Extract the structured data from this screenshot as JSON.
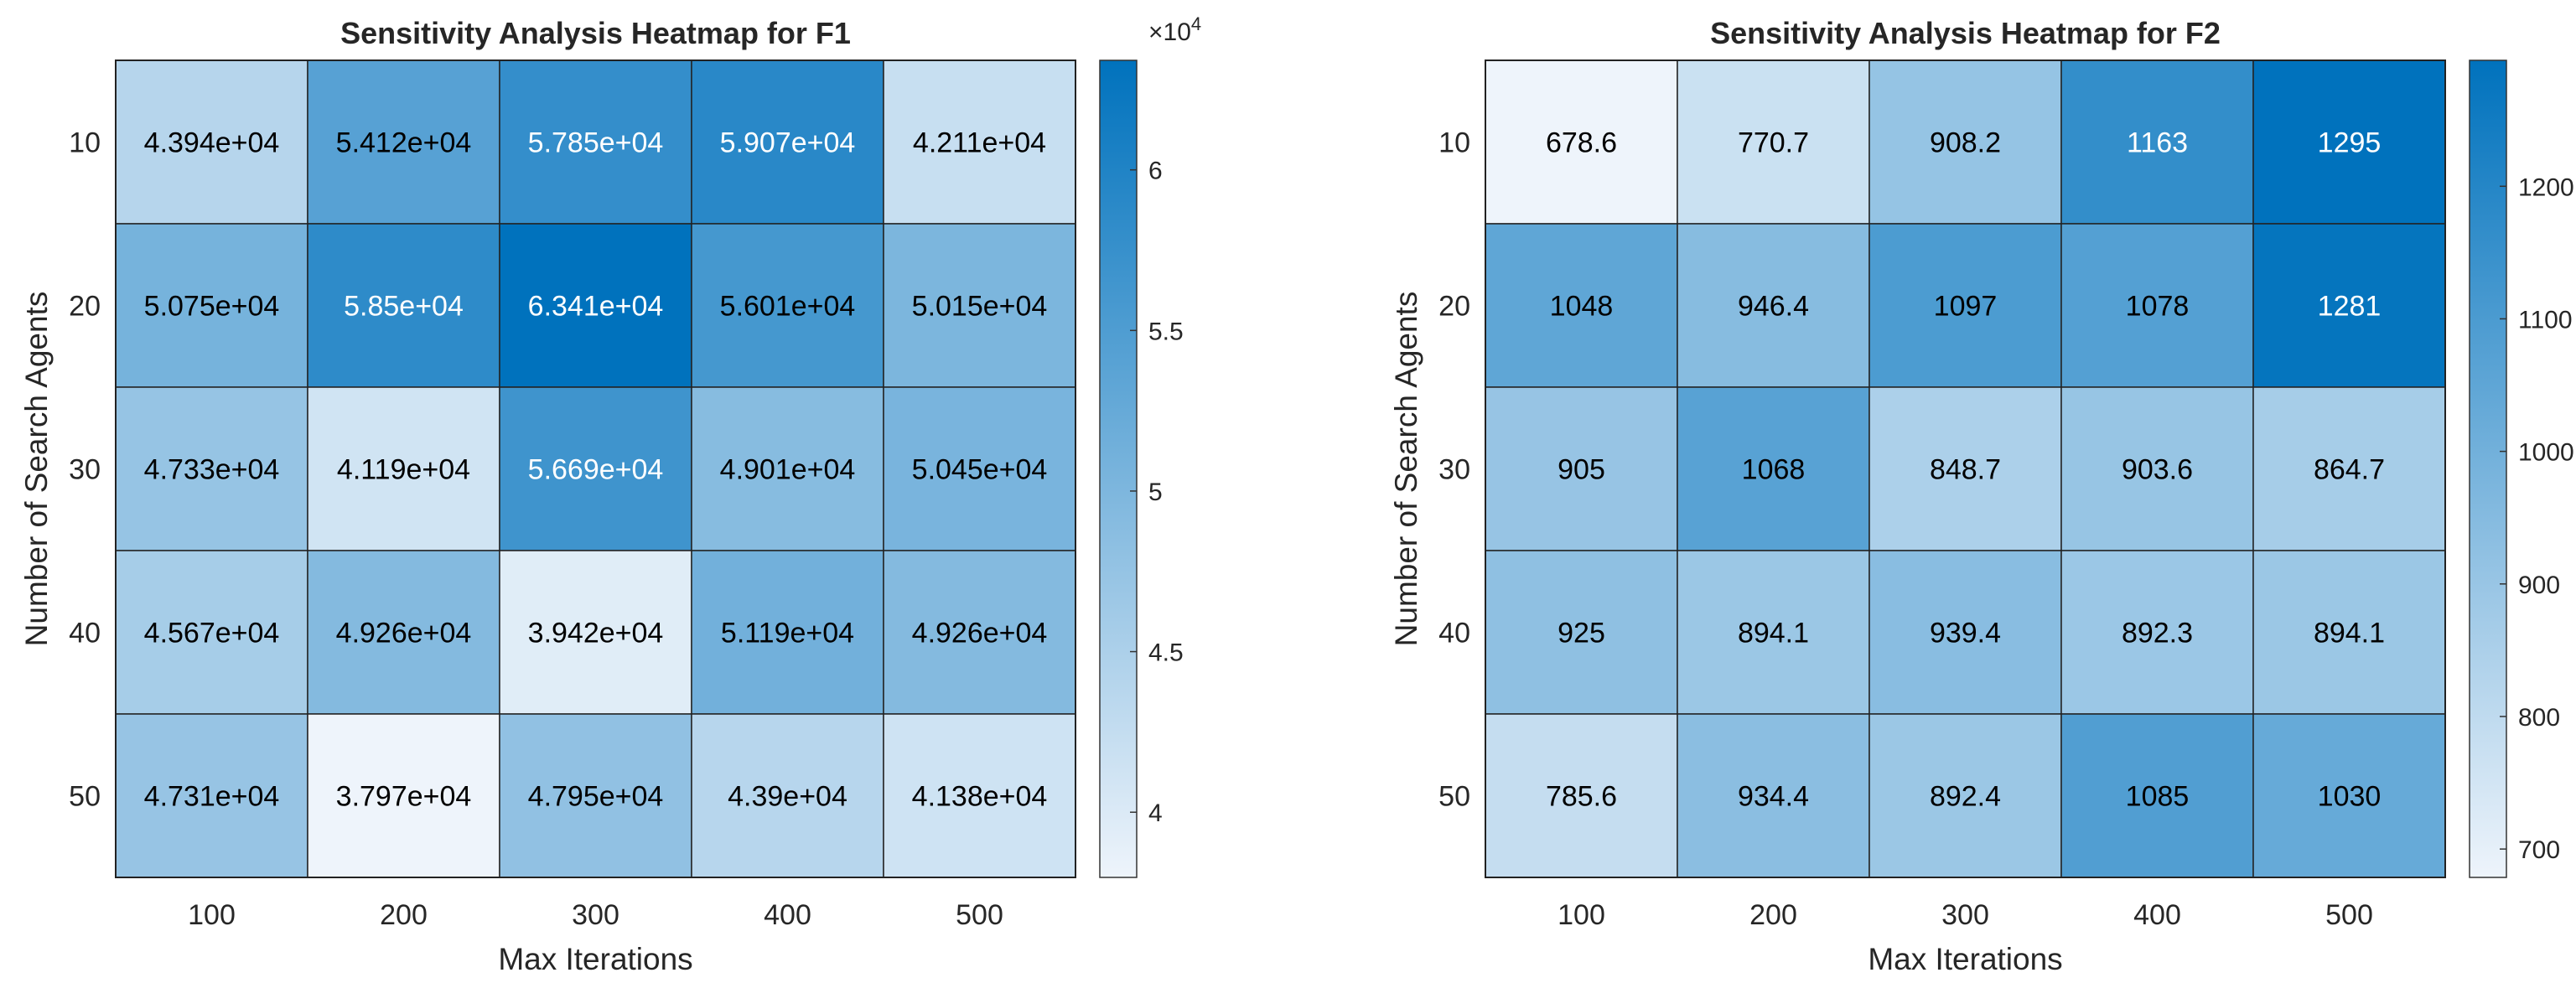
{
  "chart_data": [
    {
      "type": "heatmap",
      "title": "Sensitivity Analysis Heatmap for F1",
      "xlabel": "Max Iterations",
      "ylabel": "Number of Search Agents",
      "x_categories": [
        "100",
        "200",
        "300",
        "400",
        "500"
      ],
      "y_categories": [
        "10",
        "20",
        "30",
        "40",
        "50"
      ],
      "values": [
        [
          43940,
          54120,
          57850,
          59070,
          42110
        ],
        [
          50750,
          58500,
          63410,
          56010,
          50150
        ],
        [
          47330,
          41190,
          56690,
          49010,
          50450
        ],
        [
          45670,
          49260,
          39420,
          51190,
          49260
        ],
        [
          47310,
          37970,
          47950,
          43900,
          41380
        ]
      ],
      "cell_labels": [
        [
          "4.394e+04",
          "5.412e+04",
          "5.785e+04",
          "5.907e+04",
          "4.211e+04"
        ],
        [
          "5.075e+04",
          "5.85e+04",
          "6.341e+04",
          "5.601e+04",
          "5.015e+04"
        ],
        [
          "4.733e+04",
          "4.119e+04",
          "5.669e+04",
          "4.901e+04",
          "5.045e+04"
        ],
        [
          "4.567e+04",
          "4.926e+04",
          "3.942e+04",
          "5.119e+04",
          "4.926e+04"
        ],
        [
          "4.731e+04",
          "3.797e+04",
          "4.795e+04",
          "4.39e+04",
          "4.138e+04"
        ]
      ],
      "colorbar": {
        "range": [
          37970,
          63410
        ],
        "ticks": [
          40000,
          45000,
          50000,
          55000,
          60000
        ],
        "tick_labels": [
          "4",
          "4.5",
          "5",
          "5.5",
          "6"
        ],
        "exponent_base": "×10",
        "exponent_power": "4"
      }
    },
    {
      "type": "heatmap",
      "title": "Sensitivity Analysis Heatmap for F2",
      "xlabel": "Max Iterations",
      "ylabel": "Number of Search Agents",
      "x_categories": [
        "100",
        "200",
        "300",
        "400",
        "500"
      ],
      "y_categories": [
        "10",
        "20",
        "30",
        "40",
        "50"
      ],
      "values": [
        [
          678.6,
          770.7,
          908.2,
          1163,
          1295
        ],
        [
          1048,
          946.4,
          1097,
          1078,
          1281
        ],
        [
          905,
          1068,
          848.7,
          903.6,
          864.7
        ],
        [
          925,
          894.1,
          939.4,
          892.3,
          894.1
        ],
        [
          785.6,
          934.4,
          892.4,
          1085,
          1030
        ]
      ],
      "cell_labels": [
        [
          "678.6",
          "770.7",
          "908.2",
          "1163",
          "1295"
        ],
        [
          "1048",
          "946.4",
          "1097",
          "1078",
          "1281"
        ],
        [
          "905",
          "1068",
          "848.7",
          "903.6",
          "864.7"
        ],
        [
          "925",
          "894.1",
          "939.4",
          "892.3",
          "894.1"
        ],
        [
          "785.6",
          "934.4",
          "892.4",
          "1085",
          "1030"
        ]
      ],
      "colorbar": {
        "range": [
          678.6,
          1295
        ],
        "ticks": [
          700,
          800,
          900,
          1000,
          1100,
          1200
        ],
        "tick_labels": [
          "700",
          "800",
          "900",
          "1000",
          "1100",
          "1200"
        ]
      }
    }
  ],
  "colormap": {
    "low": "#eef4fb",
    "high": "#0072bd",
    "grid_line": "#222222",
    "text_dark": "#000000",
    "text_light": "#ffffff"
  }
}
